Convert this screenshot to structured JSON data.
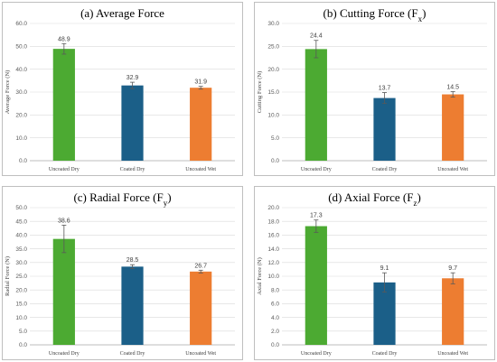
{
  "colors": {
    "uncoated_dry": "#4caa32",
    "coated_dry": "#1b5f88",
    "uncoated_wet": "#ed7d31"
  },
  "chart_data": [
    {
      "type": "bar",
      "title": "(a) Average Force",
      "title_sub": "",
      "ylabel": "Average Force (N)",
      "xlabel": "",
      "categories": [
        "Uncoated Dry",
        "Coated Dry",
        "Uncoated Wet"
      ],
      "values": [
        48.9,
        32.9,
        31.9
      ],
      "errors": [
        2.3,
        1.4,
        0.6
      ],
      "data_labels": [
        "48.9",
        "32.9",
        "31.9"
      ],
      "ylim": [
        0,
        60
      ],
      "yticks": [
        "0.0",
        "10.0",
        "20.0",
        "30.0",
        "40.0",
        "50.0",
        "60.0"
      ],
      "grid": true,
      "legend": "none"
    },
    {
      "type": "bar",
      "title": "(b) Cutting Force (F",
      "title_sub": "x",
      "ylabel": "Cutting Force (N)",
      "xlabel": "",
      "categories": [
        "Uncoated Dry",
        "Coated Dry",
        "Uncoated Wet"
      ],
      "values": [
        24.4,
        13.7,
        14.5
      ],
      "errors": [
        1.9,
        1.2,
        0.6
      ],
      "data_labels": [
        "24.4",
        "13.7",
        "14.5"
      ],
      "ylim": [
        0,
        30
      ],
      "yticks": [
        "0.0",
        "5.0",
        "10.0",
        "15.0",
        "20.0",
        "25.0",
        "30.0"
      ],
      "grid": true,
      "legend": "none"
    },
    {
      "type": "bar",
      "title": "(c) Radial Force (F",
      "title_sub": "y",
      "ylabel": "Radial Force (N)",
      "xlabel": "",
      "categories": [
        "Uncoated Dry",
        "Coated Dry",
        "Uncoated Wet"
      ],
      "values": [
        38.6,
        28.5,
        26.7
      ],
      "errors": [
        5.0,
        0.7,
        0.5
      ],
      "data_labels": [
        "38.6",
        "28.5",
        "26.7"
      ],
      "ylim": [
        0,
        50
      ],
      "yticks": [
        "0.0",
        "5.0",
        "10.0",
        "15.0",
        "20.0",
        "25.0",
        "30.0",
        "35.0",
        "40.0",
        "45.0",
        "50.0"
      ],
      "grid": true,
      "legend": "none"
    },
    {
      "type": "bar",
      "title": "(d) Axial Force (F",
      "title_sub": "z",
      "ylabel": "Axial Force (N)",
      "xlabel": "",
      "categories": [
        "Uncoated Dry",
        "Coated Dry",
        "Uncoated Wet"
      ],
      "values": [
        17.3,
        9.1,
        9.7
      ],
      "errors": [
        0.9,
        1.4,
        0.8
      ],
      "data_labels": [
        "17.3",
        "9.1",
        "9.7"
      ],
      "ylim": [
        0,
        20
      ],
      "yticks": [
        "0.0",
        "2.0",
        "4.0",
        "6.0",
        "8.0",
        "10.0",
        "12.0",
        "14.0",
        "16.0",
        "18.0",
        "20.0"
      ],
      "grid": true,
      "legend": "none"
    }
  ]
}
